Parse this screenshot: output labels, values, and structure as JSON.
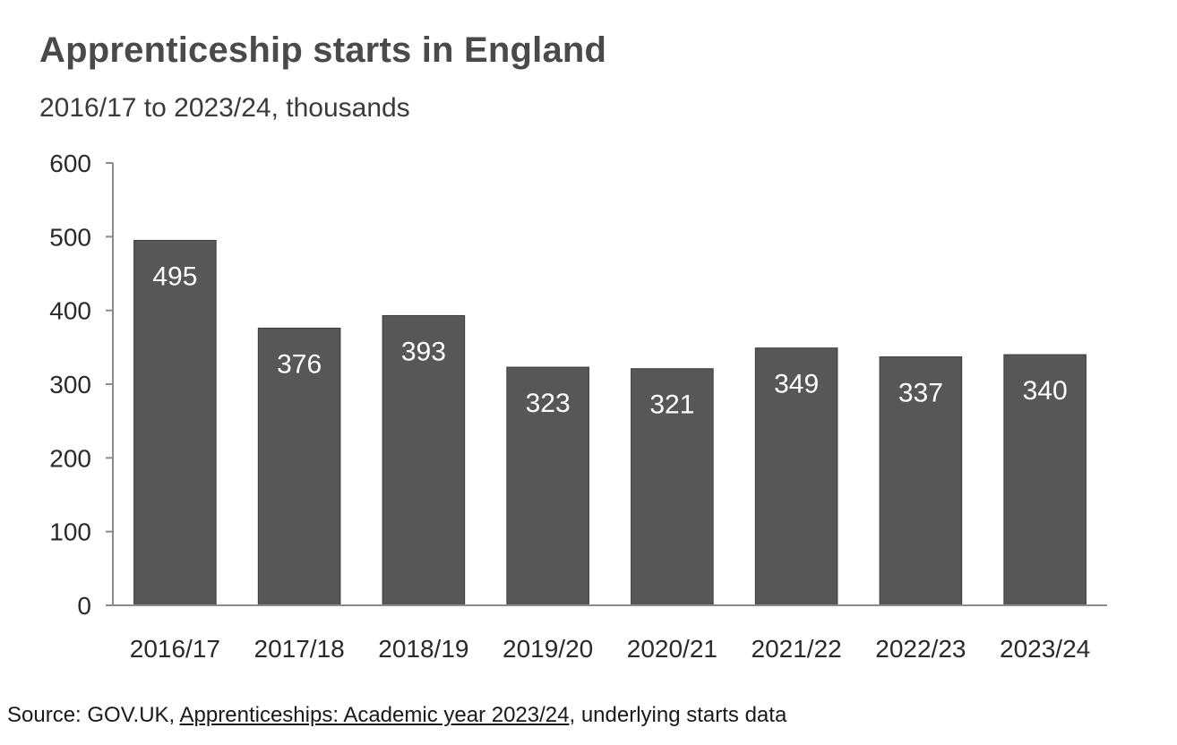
{
  "chart_data": {
    "type": "bar",
    "title": "Apprenticeship starts in England",
    "subtitle": "2016/17 to 2023/24, thousands",
    "categories": [
      "2016/17",
      "2017/18",
      "2018/19",
      "2019/20",
      "2020/21",
      "2021/22",
      "2022/23",
      "2023/24"
    ],
    "values": [
      495,
      376,
      393,
      323,
      321,
      349,
      337,
      340
    ],
    "data_labels": [
      "495",
      "376",
      "393",
      "323",
      "321",
      "349",
      "337",
      "340"
    ],
    "ylim": [
      0,
      600
    ],
    "yticks": [
      0,
      100,
      200,
      300,
      400,
      500,
      600
    ],
    "xlabel": "",
    "ylabel": "",
    "grid": false,
    "bar_color": "#575757",
    "label_color": "#ffffff"
  },
  "source": {
    "prefix": "Source: GOV.UK, ",
    "link_text": "Apprenticeships: Academic year 2023/24",
    "suffix": ", underlying starts data"
  }
}
